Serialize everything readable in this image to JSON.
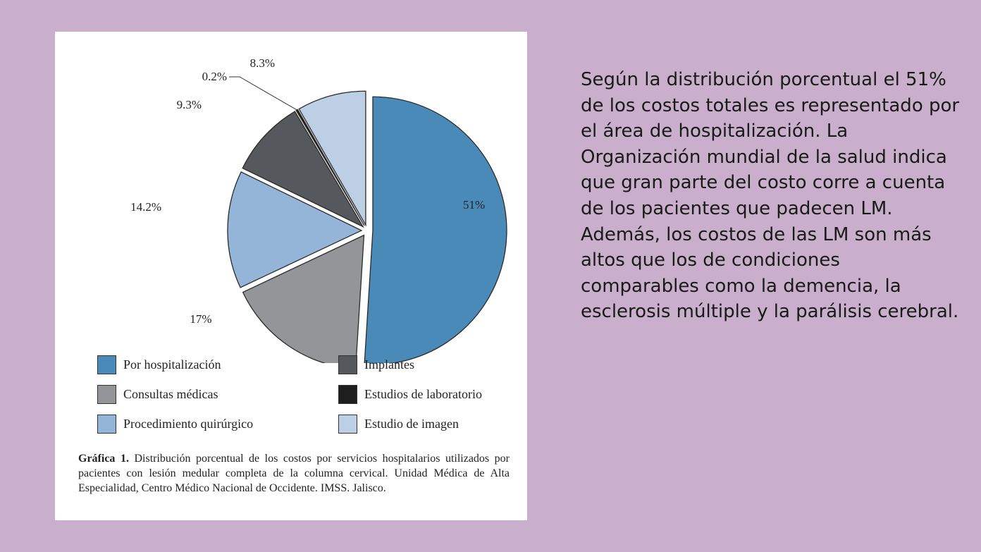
{
  "chart_data": {
    "type": "pie",
    "slices": [
      {
        "label": "Por hospitalización",
        "value": 51,
        "value_label": "51%",
        "color": "#4a8ab8"
      },
      {
        "label": "Consultas médicas",
        "value": 17,
        "value_label": "17%",
        "color": "#939599"
      },
      {
        "label": "Procedimiento quirúrgico",
        "value": 14.2,
        "value_label": "14.2%",
        "color": "#94b5d8"
      },
      {
        "label": "Implantes",
        "value": 9.3,
        "value_label": "9.3%",
        "color": "#55585c"
      },
      {
        "label": "Estudios de laboratorio",
        "value": 0.2,
        "value_label": "0.2%",
        "color": "#1e1e1e"
      },
      {
        "label": "Estudio de imagen",
        "value": 8.3,
        "value_label": "8.3%",
        "color": "#bccfe5"
      }
    ],
    "legend_placement": "bottom",
    "caption_title": "Gráfica 1.",
    "caption_text": "Distribución porcentual de los costos por servicios hospitalarios utilizados por pacientes con lesión medular completa de la columna cervical. Unidad Médica de Alta Especialidad, Centro Médico Nacional de Occidente. IMSS. Jalisco."
  },
  "side_text": "Según la distribución porcentual el 51% de los costos totales es representado por el área de hospitalización. La Organización mundial de la salud indica que gran parte del costo corre a cuenta de los pacientes que padecen LM. Además, los costos de las LM son más altos que los de condiciones comparables como la demencia, la esclerosis múltiple y la parálisis cerebral."
}
